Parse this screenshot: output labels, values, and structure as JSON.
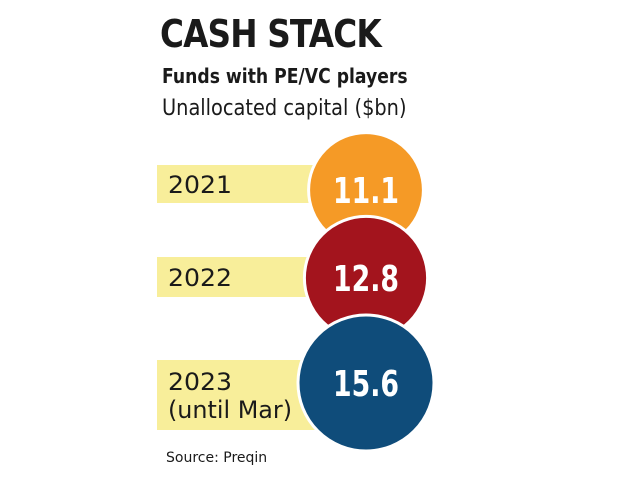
{
  "title": "CASH STACK",
  "subtitle": "Funds with PE/VC players",
  "unit_label": "Unallocated capital ($bn)",
  "source": "Source: Preqin",
  "colors": {
    "band": "#f8ee9a",
    "circle_2021": "#f59a26",
    "circle_2022": "#a3141d",
    "circle_2023": "#0f4c7a",
    "circle_stroke": "#ffffff",
    "value_text": "#ffffff",
    "label_text": "#1a1a1a"
  },
  "chart_data": {
    "type": "bubble",
    "title": "CASH STACK",
    "subtitle": "Funds with PE/VC players",
    "ylabel": "Unallocated capital ($bn)",
    "categories": [
      [
        "2021"
      ],
      [
        "2022"
      ],
      [
        "2023",
        "(until Mar)"
      ]
    ],
    "values": [
      11.1,
      12.8,
      15.6
    ],
    "value_labels": [
      "11.1",
      "12.8",
      "15.6"
    ],
    "legend": "none",
    "grid": false
  }
}
